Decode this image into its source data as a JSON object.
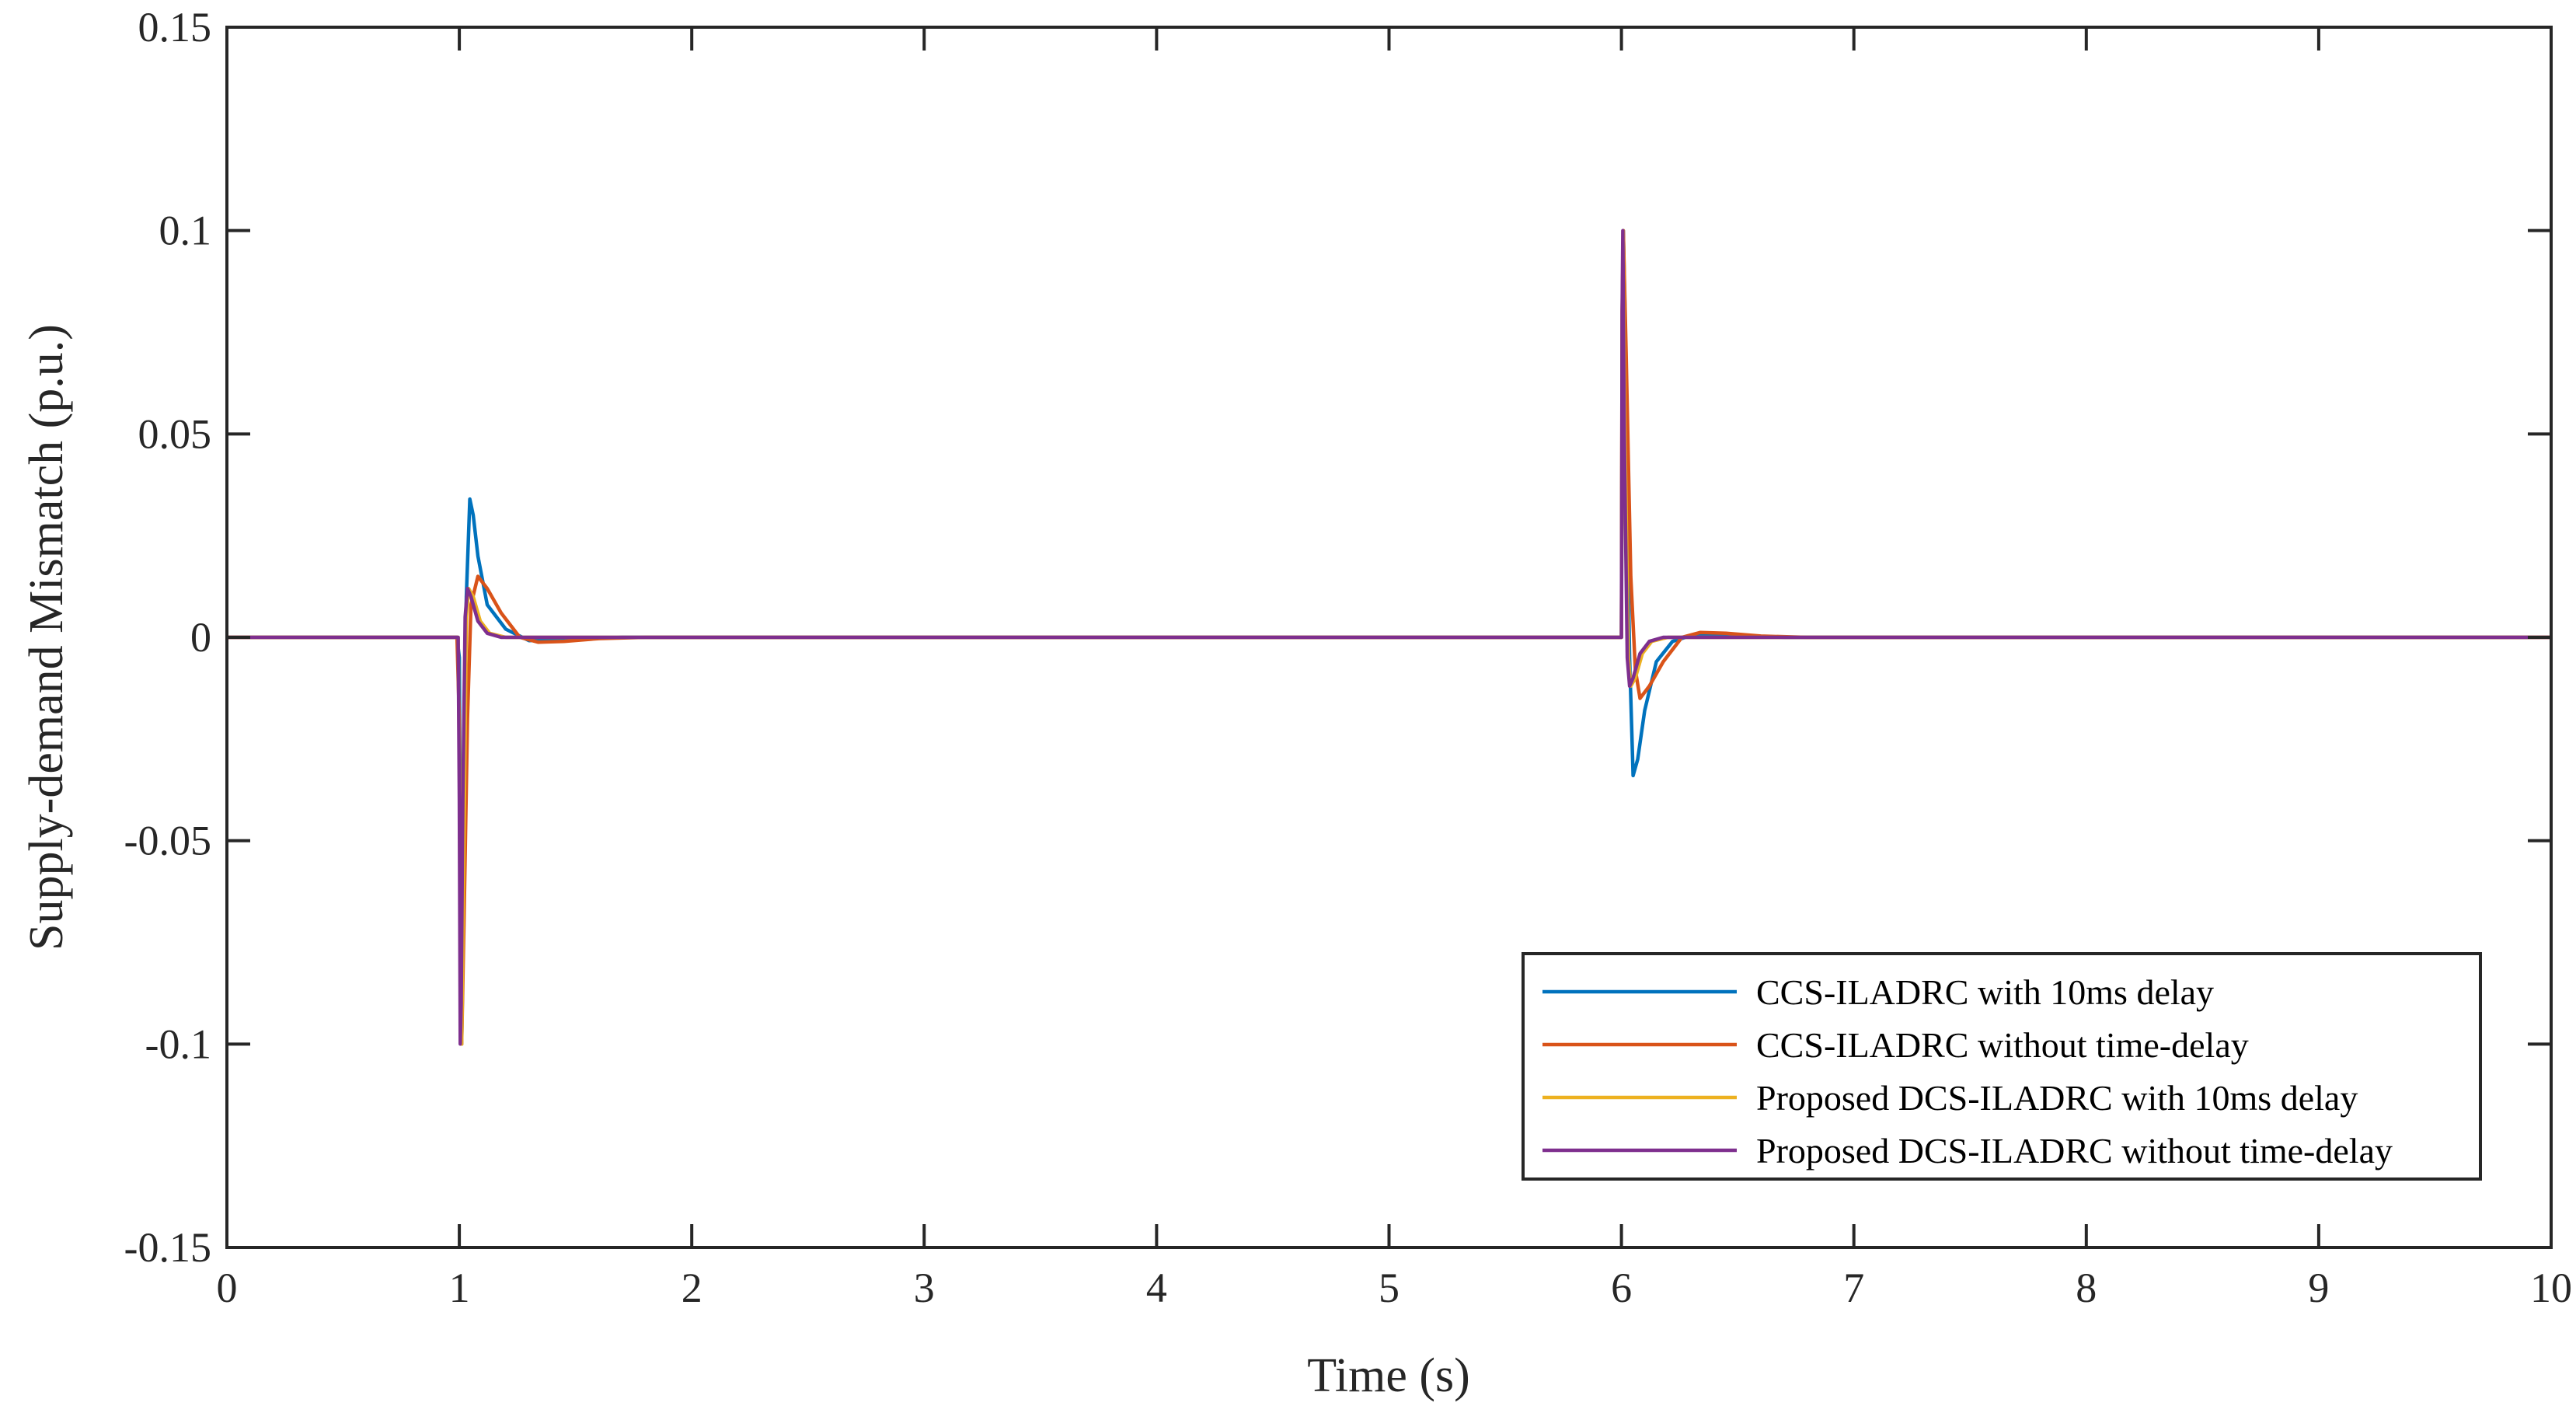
{
  "chart_data": {
    "type": "line",
    "xlabel": "Time (s)",
    "ylabel": "Supply-demand Mismatch (p.u.)",
    "xlim": [
      0,
      10
    ],
    "ylim": [
      -0.15,
      0.15
    ],
    "x_ticks": [
      0,
      1,
      2,
      3,
      4,
      5,
      6,
      7,
      8,
      9,
      10
    ],
    "x_tick_labels": [
      "0",
      "1",
      "2",
      "3",
      "4",
      "5",
      "6",
      "7",
      "8",
      "9",
      "10"
    ],
    "y_ticks": [
      0.15,
      0.1,
      0.05,
      0,
      -0.05,
      -0.1,
      -0.15
    ],
    "y_tick_labels": [
      "0.15",
      "0.1",
      "0.05",
      "0",
      "-0.05",
      "-0.1",
      "-0.15"
    ],
    "grid": false,
    "legend_position": "bottom-right",
    "series": [
      {
        "name": "CCS-ILADRC with 10ms delay",
        "color": "#0072BD",
        "points": [
          [
            0,
            0
          ],
          [
            0.99,
            0
          ],
          [
            1.0,
            -0.005
          ],
          [
            1.005,
            -0.06
          ],
          [
            1.01,
            -0.1
          ],
          [
            1.015,
            -0.08
          ],
          [
            1.02,
            -0.03
          ],
          [
            1.03,
            0.01
          ],
          [
            1.045,
            0.034
          ],
          [
            1.06,
            0.03
          ],
          [
            1.08,
            0.02
          ],
          [
            1.12,
            0.008
          ],
          [
            1.2,
            0.002
          ],
          [
            1.3,
            -0.0008
          ],
          [
            1.45,
            -0.0005
          ],
          [
            1.7,
            0
          ],
          [
            6.0,
            0
          ],
          [
            6.003,
            0.06
          ],
          [
            6.008,
            0.1
          ],
          [
            6.015,
            0.08
          ],
          [
            6.025,
            0.03
          ],
          [
            6.035,
            -0.005
          ],
          [
            6.05,
            -0.034
          ],
          [
            6.07,
            -0.03
          ],
          [
            6.1,
            -0.018
          ],
          [
            6.15,
            -0.006
          ],
          [
            6.22,
            -0.001
          ],
          [
            6.32,
            0.0008
          ],
          [
            6.45,
            0.0005
          ],
          [
            6.7,
            0
          ],
          [
            10,
            0
          ]
        ]
      },
      {
        "name": "CCS-ILADRC without time-delay",
        "color": "#D95319",
        "points": [
          [
            0,
            0
          ],
          [
            0.99,
            0
          ],
          [
            1.0,
            -0.02
          ],
          [
            1.005,
            -0.09
          ],
          [
            1.01,
            -0.1
          ],
          [
            1.02,
            -0.07
          ],
          [
            1.035,
            -0.02
          ],
          [
            1.05,
            0.008
          ],
          [
            1.08,
            0.015
          ],
          [
            1.12,
            0.012
          ],
          [
            1.18,
            0.006
          ],
          [
            1.26,
            0.0
          ],
          [
            1.34,
            -0.0012
          ],
          [
            1.45,
            -0.001
          ],
          [
            1.6,
            -0.0003
          ],
          [
            1.8,
            0
          ],
          [
            6.0,
            0
          ],
          [
            6.003,
            0.08
          ],
          [
            6.008,
            0.1
          ],
          [
            6.02,
            0.07
          ],
          [
            6.04,
            0.015
          ],
          [
            6.06,
            -0.008
          ],
          [
            6.08,
            -0.015
          ],
          [
            6.12,
            -0.012
          ],
          [
            6.18,
            -0.006
          ],
          [
            6.26,
            0.0
          ],
          [
            6.34,
            0.0012
          ],
          [
            6.45,
            0.001
          ],
          [
            6.6,
            0.0003
          ],
          [
            6.8,
            0
          ],
          [
            10,
            0
          ]
        ]
      },
      {
        "name": "Proposed DCS-ILADRC with 10ms delay",
        "color": "#EDB120",
        "points": [
          [
            0,
            0
          ],
          [
            0.995,
            0
          ],
          [
            1.0,
            -0.03
          ],
          [
            1.005,
            -0.09
          ],
          [
            1.01,
            -0.1
          ],
          [
            1.02,
            -0.05
          ],
          [
            1.03,
            0.005
          ],
          [
            1.04,
            0.012
          ],
          [
            1.06,
            0.01
          ],
          [
            1.09,
            0.004
          ],
          [
            1.13,
            0.001
          ],
          [
            1.2,
            0
          ],
          [
            6.0,
            0
          ],
          [
            6.003,
            0.07
          ],
          [
            6.007,
            0.1
          ],
          [
            6.015,
            0.05
          ],
          [
            6.03,
            -0.005
          ],
          [
            6.04,
            -0.012
          ],
          [
            6.06,
            -0.01
          ],
          [
            6.09,
            -0.004
          ],
          [
            6.13,
            -0.001
          ],
          [
            6.2,
            0
          ],
          [
            10,
            0
          ]
        ]
      },
      {
        "name": "Proposed DCS-ILADRC without time-delay",
        "color": "#7E2F8E",
        "points": [
          [
            0,
            0
          ],
          [
            0.995,
            0
          ],
          [
            1.0,
            -0.04
          ],
          [
            1.004,
            -0.1
          ],
          [
            1.008,
            -0.09
          ],
          [
            1.015,
            -0.04
          ],
          [
            1.025,
            0.005
          ],
          [
            1.035,
            0.012
          ],
          [
            1.05,
            0.01
          ],
          [
            1.08,
            0.004
          ],
          [
            1.12,
            0.001
          ],
          [
            1.18,
            0
          ],
          [
            6.0,
            0
          ],
          [
            6.003,
            0.08
          ],
          [
            6.006,
            0.1
          ],
          [
            6.012,
            0.05
          ],
          [
            6.025,
            -0.005
          ],
          [
            6.035,
            -0.012
          ],
          [
            6.05,
            -0.01
          ],
          [
            6.08,
            -0.004
          ],
          [
            6.12,
            -0.001
          ],
          [
            6.18,
            0
          ],
          [
            10,
            0
          ]
        ]
      }
    ]
  }
}
